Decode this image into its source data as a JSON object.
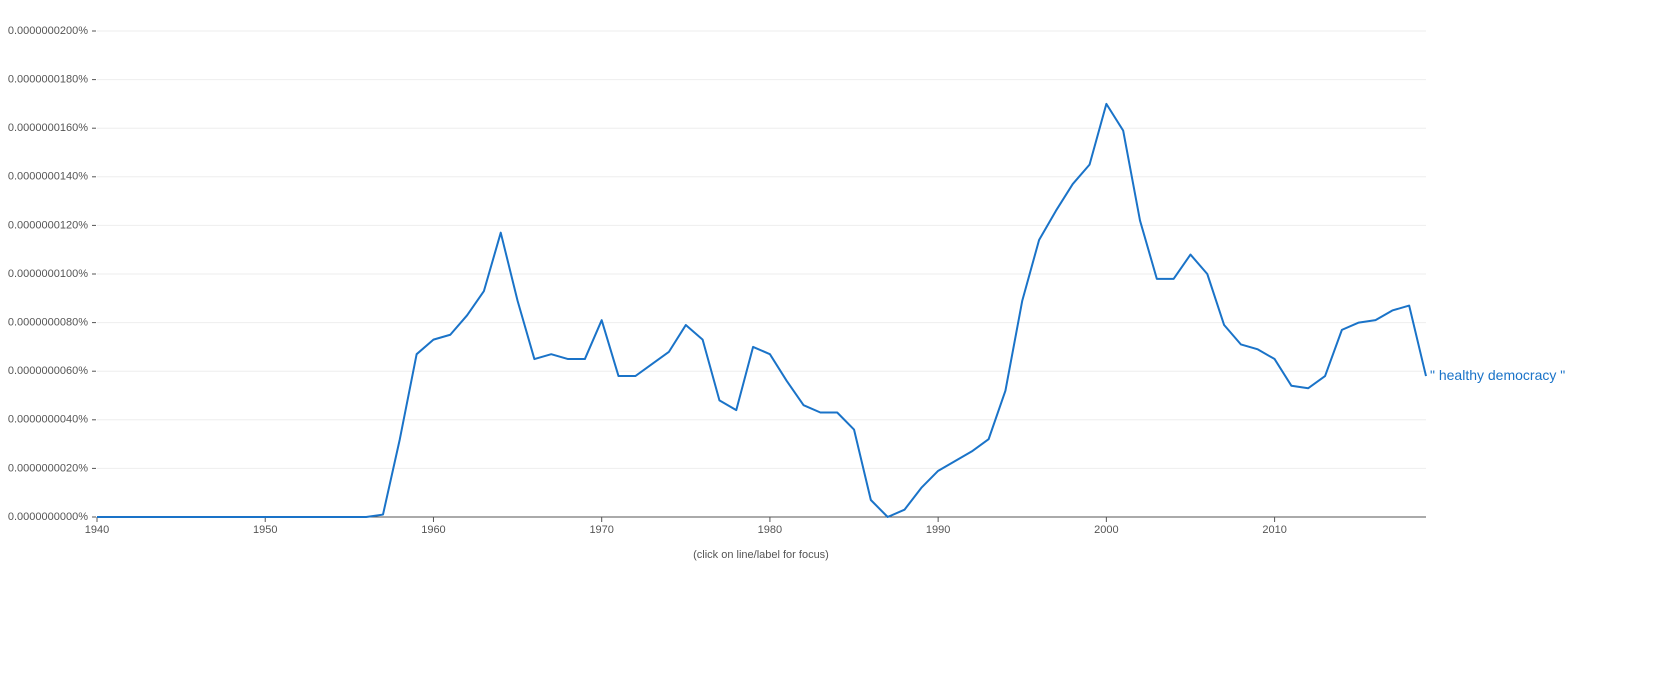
{
  "chart_data": {
    "type": "line",
    "annotation": "(click on line/label for focus)",
    "x": [
      1940,
      1941,
      1942,
      1943,
      1944,
      1945,
      1946,
      1947,
      1948,
      1949,
      1950,
      1951,
      1952,
      1953,
      1954,
      1955,
      1956,
      1957,
      1958,
      1959,
      1960,
      1961,
      1962,
      1963,
      1964,
      1965,
      1966,
      1967,
      1968,
      1969,
      1970,
      1971,
      1972,
      1973,
      1974,
      1975,
      1976,
      1977,
      1978,
      1979,
      1980,
      1981,
      1982,
      1983,
      1984,
      1985,
      1986,
      1987,
      1988,
      1989,
      1990,
      1991,
      1992,
      1993,
      1994,
      1995,
      1996,
      1997,
      1998,
      1999,
      2000,
      2001,
      2002,
      2003,
      2004,
      2005,
      2006,
      2007,
      2008,
      2009,
      2010,
      2011,
      2012,
      2013,
      2014,
      2015,
      2016,
      2017,
      2018,
      2019
    ],
    "series": [
      {
        "name": "\" healthy democracy \"",
        "color": "#1a73c8",
        "values": [
          0,
          0,
          0,
          0,
          0,
          0,
          0,
          0,
          0,
          0,
          0,
          0,
          0,
          0,
          0,
          0,
          0,
          1e-10,
          3.2e-09,
          6.7e-09,
          7.3e-09,
          7.5e-09,
          8.3e-09,
          9.3e-09,
          1.17e-08,
          8.9e-09,
          6.5e-09,
          6.7e-09,
          6.5e-09,
          6.5e-09,
          8.1e-09,
          5.8e-09,
          5.8e-09,
          6.3e-09,
          6.8e-09,
          7.9e-09,
          7.3e-09,
          4.8e-09,
          4.4e-09,
          7e-09,
          6.7e-09,
          5.6e-09,
          4.6e-09,
          4.3e-09,
          4.3e-09,
          3.6e-09,
          7e-10,
          0,
          3e-10,
          1.2e-09,
          1.9e-09,
          2.3e-09,
          2.7e-09,
          3.2e-09,
          5.2e-09,
          8.9e-09,
          1.14e-08,
          1.26e-08,
          1.37e-08,
          1.45e-08,
          1.7e-08,
          1.59e-08,
          1.22e-08,
          9.8e-09,
          9.8e-09,
          1.08e-08,
          1e-08,
          7.9e-09,
          7.1e-09,
          6.9e-09,
          6.5e-09,
          5.4e-09,
          5.3e-09,
          5.8e-09,
          7.7e-09,
          8e-09,
          8.1e-09,
          8.5e-09,
          8.7e-09,
          5.8e-09
        ]
      }
    ],
    "xlim": [
      1940,
      2019
    ],
    "xticks": [
      1940,
      1950,
      1960,
      1970,
      1980,
      1990,
      2000,
      2010
    ],
    "ylim": [
      0,
      2e-08
    ],
    "yticks": [
      {
        "value": 0,
        "label": "0.0000000000%"
      },
      {
        "value": 2e-09,
        "label": "0.0000000020%"
      },
      {
        "value": 4e-09,
        "label": "0.0000000040%"
      },
      {
        "value": 6e-09,
        "label": "0.0000000060%"
      },
      {
        "value": 8e-09,
        "label": "0.0000000080%"
      },
      {
        "value": 1e-08,
        "label": "0.0000000100%"
      },
      {
        "value": 1.2e-08,
        "label": "0.0000000120%"
      },
      {
        "value": 1.4e-08,
        "label": "0.0000000140%"
      },
      {
        "value": 1.6e-08,
        "label": "0.0000000160%"
      },
      {
        "value": 1.8e-08,
        "label": "0.0000000180%"
      },
      {
        "value": 2e-08,
        "label": "0.0000000200%"
      }
    ],
    "grid": true
  }
}
